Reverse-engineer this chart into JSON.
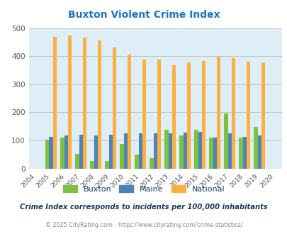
{
  "title": "Buxton Violent Crime Index",
  "title_color": "#1874cd",
  "years": [
    2004,
    2005,
    2006,
    2007,
    2008,
    2009,
    2010,
    2011,
    2012,
    2013,
    2014,
    2015,
    2016,
    2017,
    2018,
    2019,
    2020
  ],
  "buxton": [
    null,
    102,
    110,
    52,
    28,
    28,
    88,
    50,
    38,
    138,
    118,
    138,
    110,
    197,
    110,
    147,
    null
  ],
  "maine": [
    null,
    113,
    117,
    120,
    118,
    121,
    125,
    124,
    124,
    126,
    129,
    131,
    110,
    124,
    113,
    117,
    null
  ],
  "national": [
    null,
    469,
    474,
    467,
    455,
    432,
    406,
    387,
    387,
    367,
    378,
    384,
    398,
    394,
    380,
    379,
    null
  ],
  "buxton_color": "#7dc142",
  "maine_color": "#4f81bd",
  "national_color": "#fbb040",
  "bg_color": "#ddeef6",
  "ylim": [
    0,
    500
  ],
  "yticks": [
    0,
    100,
    200,
    300,
    400,
    500
  ],
  "grid_color": "#bbbbbb",
  "annotation": "Crime Index corresponds to incidents per 100,000 inhabitants",
  "footer": "© 2025 CityRating.com - https://www.cityrating.com/crime-statistics/",
  "annotation_color": "#1a3a5c",
  "footer_color": "#888888",
  "legend_labels": [
    "Buxton",
    "Maine",
    "National"
  ],
  "bar_width": 0.25
}
